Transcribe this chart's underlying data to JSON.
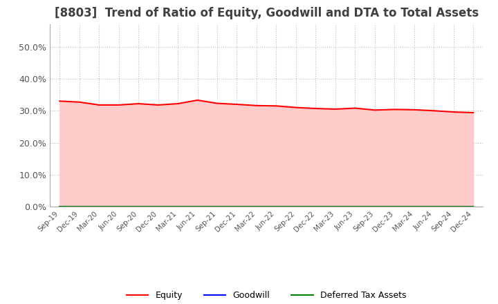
{
  "title": "[8803]  Trend of Ratio of Equity, Goodwill and DTA to Total Assets",
  "title_fontsize": 12,
  "ylim": [
    0.0,
    0.57
  ],
  "yticks": [
    0.0,
    0.1,
    0.2,
    0.3,
    0.4,
    0.5
  ],
  "ytick_labels": [
    "0.0%",
    "10.0%",
    "20.0%",
    "30.0%",
    "40.0%",
    "50.0%"
  ],
  "x_labels": [
    "Sep-19",
    "Dec-19",
    "Mar-20",
    "Jun-20",
    "Sep-20",
    "Dec-20",
    "Mar-21",
    "Jun-21",
    "Sep-21",
    "Dec-21",
    "Mar-22",
    "Jun-22",
    "Sep-22",
    "Dec-22",
    "Mar-23",
    "Jun-23",
    "Sep-23",
    "Dec-23",
    "Mar-24",
    "Jun-24",
    "Sep-24",
    "Dec-24"
  ],
  "equity": [
    0.33,
    0.327,
    0.318,
    0.318,
    0.322,
    0.318,
    0.322,
    0.333,
    0.323,
    0.32,
    0.316,
    0.315,
    0.31,
    0.307,
    0.305,
    0.308,
    0.302,
    0.304,
    0.303,
    0.3,
    0.296,
    0.294
  ],
  "goodwill": [
    0.0,
    0.0,
    0.0,
    0.0,
    0.0,
    0.0,
    0.0,
    0.0,
    0.0,
    0.0,
    0.0,
    0.0,
    0.0,
    0.0,
    0.0,
    0.0,
    0.0,
    0.0,
    0.0,
    0.0,
    0.0,
    0.0
  ],
  "dta": [
    0.0,
    0.0,
    0.0,
    0.0,
    0.0,
    0.0,
    0.0,
    0.0,
    0.0,
    0.0,
    0.0,
    0.0,
    0.0,
    0.0,
    0.0,
    0.0,
    0.0,
    0.0,
    0.0,
    0.0,
    0.0,
    0.0
  ],
  "equity_color": "#ff0000",
  "goodwill_color": "#0000ff",
  "dta_color": "#008000",
  "equity_fill_color": "#ffcccc",
  "background_color": "#ffffff",
  "grid_color": "#bbbbbb",
  "title_color": "#404040"
}
